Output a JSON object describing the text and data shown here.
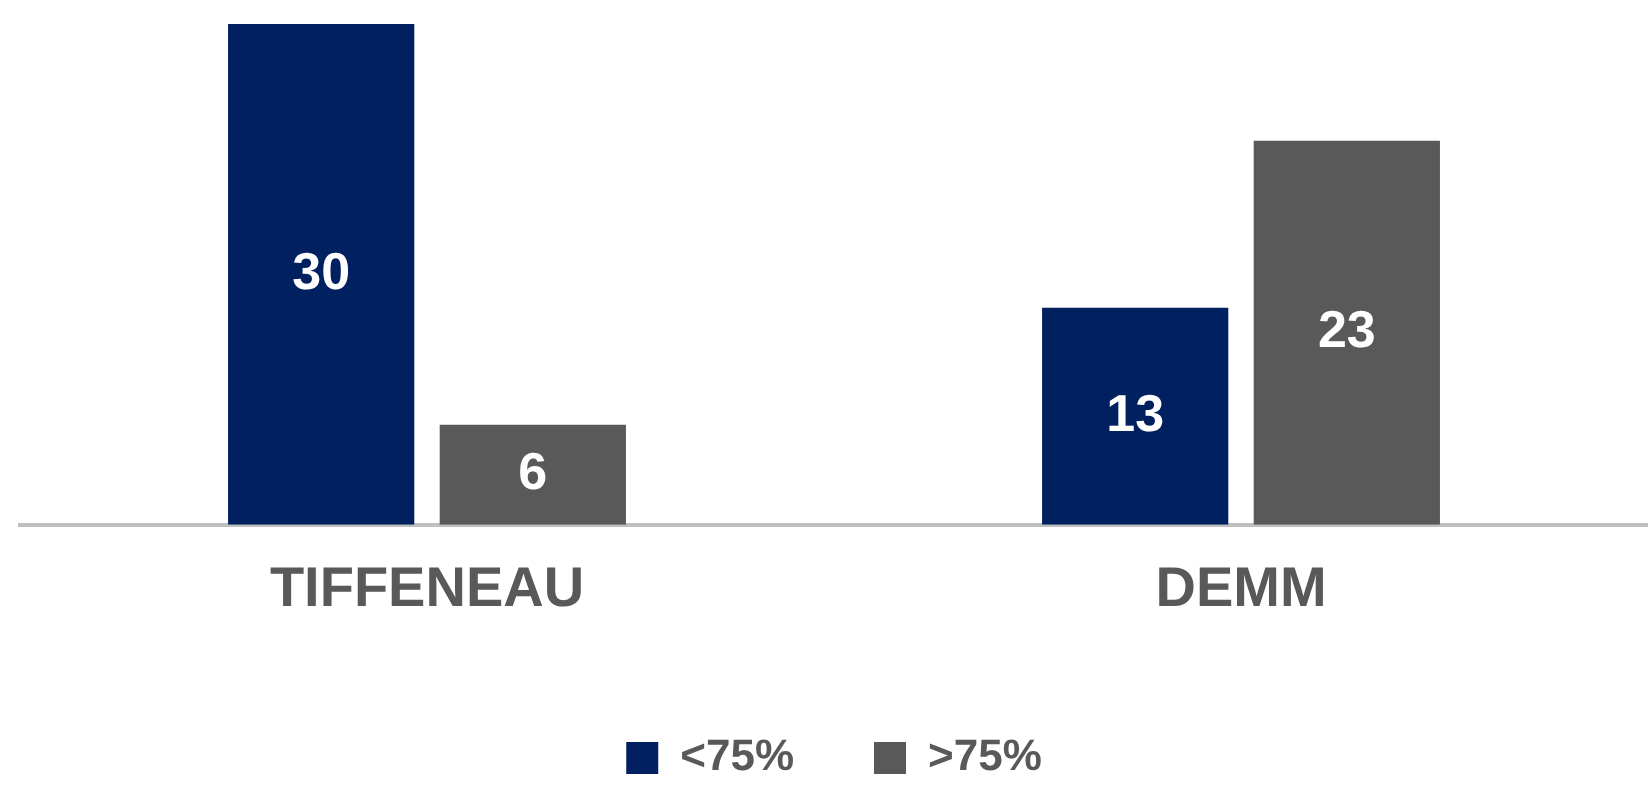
{
  "chart_data": {
    "type": "bar",
    "categories": [
      "TIFFENEAU",
      "DEMM"
    ],
    "series": [
      {
        "name": "<75%",
        "color": "#002060",
        "values": [
          30,
          13
        ]
      },
      {
        "name": ">75%",
        "color": "#595959",
        "values": [
          6,
          23
        ]
      }
    ],
    "data_labels": true,
    "legend": "bottom",
    "grid": false,
    "tick_labels": "x"
  }
}
